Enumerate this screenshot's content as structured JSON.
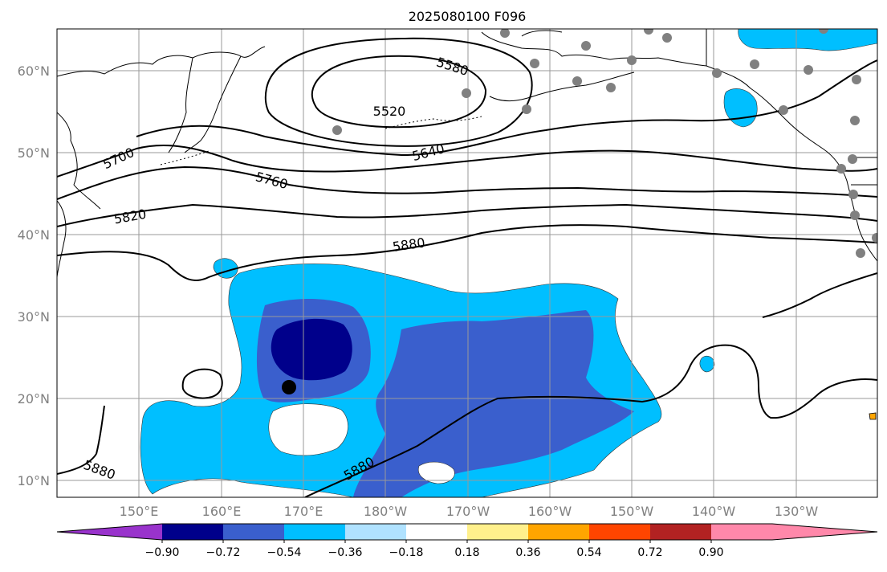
{
  "title": "2025080100 F096",
  "lon_labels": [
    "150°E",
    "160°E",
    "170°E",
    "180°W",
    "170°W",
    "160°W",
    "150°W",
    "140°W",
    "130°W"
  ],
  "lat_labels": [
    "60°N",
    "50°N",
    "40°N",
    "30°N",
    "20°N",
    "10°N"
  ],
  "contour_labels": [
    "5520",
    "5580",
    "5640",
    "5700",
    "5760",
    "5820",
    "5880",
    "5880",
    "5880"
  ],
  "colorbar": {
    "ticks": [
      "−0.90",
      "−0.72",
      "−0.54",
      "−0.36",
      "−0.18",
      "0.18",
      "0.36",
      "0.54",
      "0.72",
      "0.90"
    ],
    "colors": [
      "#9933cc",
      "#00008b",
      "#3a5fcd",
      "#00bfff",
      "#b0e2ff",
      "#ffffff",
      "#fff08c",
      "#ffa500",
      "#ff4500",
      "#b22222",
      "#ff88aa",
      "#ff88aa"
    ]
  },
  "anomaly_colors": {
    "strong_negative": "#00008b",
    "moderate_negative": "#3a5fcd",
    "weak_negative": "#00bfff",
    "weak_positive": "#ffa500"
  },
  "markers": {
    "station_color": "#808080",
    "center_color": "#000000"
  }
}
